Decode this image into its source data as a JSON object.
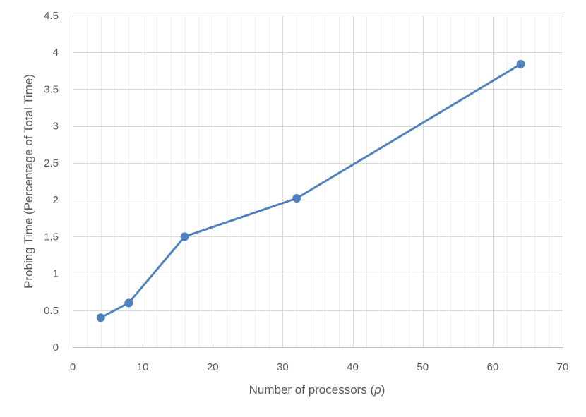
{
  "chart_data": {
    "type": "scatter",
    "title": "",
    "xlabel_prefix": "Number of processors (",
    "xlabel_var": "p",
    "xlabel_suffix": ")",
    "ylabel": "Probing Time (Percentage of Total Time)",
    "xlim": [
      0,
      70
    ],
    "ylim": [
      0,
      4.5
    ],
    "x_major_ticks": [
      0,
      10,
      20,
      30,
      40,
      50,
      60,
      70
    ],
    "x_tick_labels": [
      "0",
      "10",
      "20",
      "30",
      "40",
      "50",
      "60",
      "70"
    ],
    "y_major_ticks": [
      0,
      0.5,
      1,
      1.5,
      2,
      2.5,
      3,
      3.5,
      4,
      4.5
    ],
    "y_tick_labels": [
      "0",
      "0.5",
      "1",
      "1.5",
      "2",
      "2.5",
      "3",
      "3.5",
      "4",
      "4.5"
    ],
    "x_minor_step": 2,
    "grid": true,
    "legend": "none",
    "series": [
      {
        "x": [
          4,
          8,
          16,
          32,
          64
        ],
        "y": [
          0.4,
          0.6,
          1.5,
          2.02,
          3.84
        ],
        "markers": true,
        "lines": true
      }
    ],
    "colors": {
      "series": "#4f81bd",
      "major_grid": "#d9d9d9",
      "minor_grid": "#efefef",
      "axis": "#bfbfbf",
      "text": "#595959"
    }
  }
}
